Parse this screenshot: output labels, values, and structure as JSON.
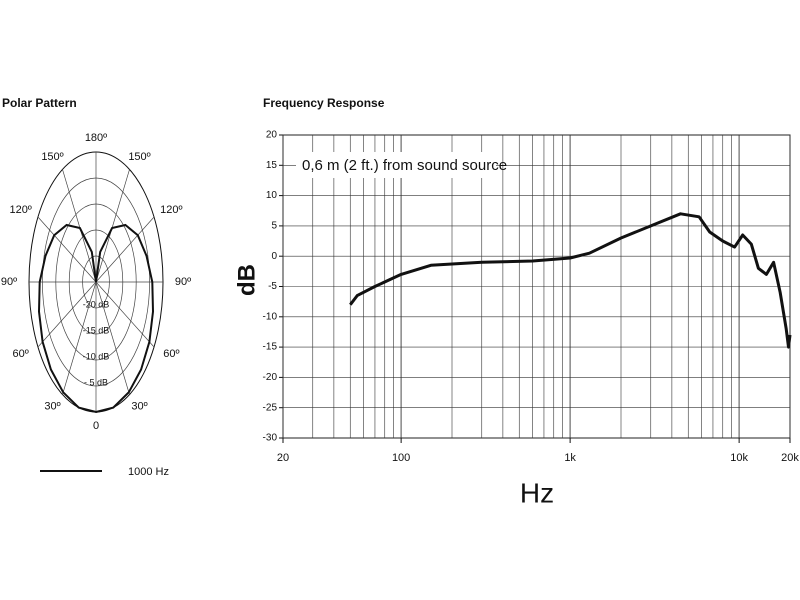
{
  "chart_data": [
    {
      "type": "polar",
      "title": "Polar Pattern",
      "theta": [
        0,
        15,
        30,
        45,
        60,
        75,
        90,
        105,
        120,
        135,
        150,
        165,
        180,
        195,
        210,
        225,
        240,
        255,
        270,
        285,
        300,
        315,
        330,
        345
      ],
      "series": [
        {
          "name": "1000 Hz",
          "color": "#111111",
          "values": [
            0,
            0,
            -0.5,
            -1.2,
            -2,
            -3,
            -4,
            -5.5,
            -7,
            -9.5,
            -13,
            -19,
            -25,
            -19,
            -13,
            -9.5,
            -7,
            -5.5,
            -4,
            -3,
            -2,
            -1.2,
            -0.5,
            0
          ]
        }
      ],
      "rlim": [
        -25,
        0
      ],
      "rticks": [
        {
          "value": -20,
          "label": "-20 dB"
        },
        {
          "value": -15,
          "label": "-15 dB"
        },
        {
          "value": -10,
          "label": "-10 dB"
        },
        {
          "value": -5,
          "label": "- 5 dB"
        }
      ],
      "thetaticks": [
        0,
        {
          "value": 30,
          "label": "30º"
        },
        {
          "value": 60,
          "label": "60º"
        },
        {
          "value": 90,
          "label": "90º"
        },
        {
          "value": 120,
          "label": "120º"
        },
        {
          "value": 150,
          "label": "150º"
        },
        {
          "value": 180,
          "label": "180º"
        },
        {
          "value": 210,
          "label": "150º"
        },
        {
          "value": 240,
          "label": "120º"
        },
        {
          "value": 270,
          "label": "90º"
        },
        {
          "value": 300,
          "label": "60º"
        },
        {
          "value": 330,
          "label": "30º"
        }
      ]
    },
    {
      "type": "line",
      "title": "Frequency Response",
      "x": [
        50,
        55,
        70,
        100,
        150,
        300,
        600,
        1000,
        1300,
        2000,
        3000,
        4500,
        5800,
        6700,
        8000,
        9400,
        10500,
        11800,
        13000,
        14500,
        16000,
        17500,
        19000,
        19600,
        20000
      ],
      "values": [
        -8,
        -6.5,
        -5,
        -3,
        -1.5,
        -1,
        -0.8,
        -0.3,
        0.5,
        3,
        5,
        7,
        6.5,
        4,
        2.5,
        1.5,
        3.5,
        2,
        -2,
        -3,
        -1,
        -6,
        -12,
        -15,
        -13
      ],
      "color": "#111111",
      "xlabel": "Hz",
      "ylabel": "dB",
      "annotation": "0,6 m (2 ft.) from sound source",
      "xscale": "log",
      "grid": true,
      "xlim": [
        20,
        20000
      ],
      "xticks": [
        20,
        100,
        {
          "value": 1000,
          "label": "1k"
        },
        {
          "value": 10000,
          "label": "10k"
        },
        {
          "value": 20000,
          "label": "20k"
        }
      ],
      "ylim": [
        -30,
        20
      ],
      "yticks": [
        -30,
        -25,
        -20,
        -15,
        -10,
        -5,
        0,
        5,
        10,
        15,
        20
      ]
    }
  ]
}
